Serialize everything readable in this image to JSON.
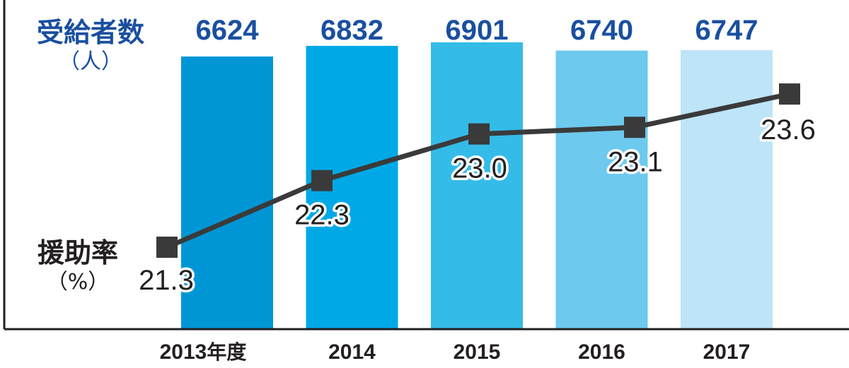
{
  "chart_data": {
    "type": "bar",
    "categories": [
      "2013",
      "2014",
      "2015",
      "2016",
      "2017"
    ],
    "first_category_suffix": "年度",
    "series": [
      {
        "name": "受給者数",
        "unit": "（人）",
        "type": "bar",
        "values": [
          6624,
          6832,
          6901,
          6740,
          6747
        ],
        "colors": [
          "#0096d6",
          "#00a9e6",
          "#34bbe8",
          "#6ec9ef",
          "#bde4f7"
        ],
        "label_color": "#1a4fa0"
      },
      {
        "name": "援助率",
        "unit": "（%）",
        "type": "line",
        "values": [
          21.3,
          22.3,
          23.0,
          23.1,
          23.6
        ],
        "labels": [
          "21.3",
          "22.3",
          "23.0",
          "23.1",
          "23.6"
        ],
        "color": "#3a3a3a"
      }
    ],
    "grid": false,
    "legend": "none"
  }
}
